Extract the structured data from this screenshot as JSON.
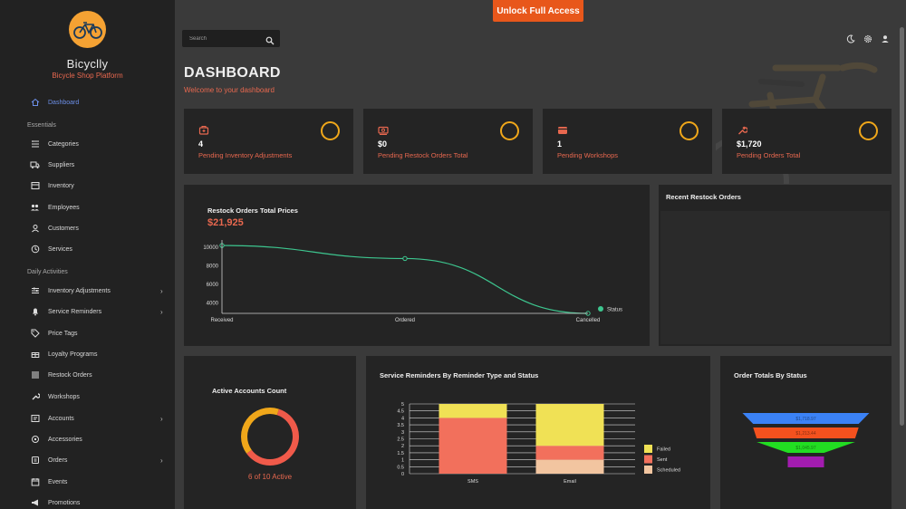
{
  "app": {
    "name": "Bicyclly",
    "subtitle": "Bicycle Shop Platform"
  },
  "unlock_label": "Unlock Full Access",
  "search": {
    "placeholder": "Search"
  },
  "page": {
    "title": "DASHBOARD",
    "subtitle": "Welcome to your dashboard"
  },
  "sidebar": {
    "dashboard": "Dashboard",
    "section_essentials": "Essentials",
    "essentials": [
      "Categories",
      "Suppliers",
      "Inventory",
      "Employees",
      "Customers",
      "Services"
    ],
    "section_daily": "Daily Activities",
    "daily": [
      "Inventory Adjustments",
      "Service Reminders",
      "Price Tags",
      "Loyalty Programs",
      "Restock Orders",
      "Workshops",
      "Accounts",
      "Accessories",
      "Orders",
      "Events",
      "Promotions"
    ]
  },
  "stats": [
    {
      "value": "4",
      "label": "Pending Inventory Adjustments",
      "icon": "adjustment-icon"
    },
    {
      "value": "$0",
      "label": "Pending Restock Orders Total",
      "icon": "money-icon"
    },
    {
      "value": "1",
      "label": "Pending Workshops",
      "icon": "card-icon"
    },
    {
      "value": "$1,720",
      "label": "Pending Orders Total",
      "icon": "wrench-icon"
    }
  ],
  "restock_chart": {
    "title": "Restock Orders Total Prices",
    "total": "$21,925",
    "legend": "Status"
  },
  "recent_restock": {
    "title": "Recent Restock Orders"
  },
  "active_accounts": {
    "title": "Active Accounts Count",
    "caption": "6 of 10 Active"
  },
  "reminders": {
    "title": "Service Reminders By Reminder Type and Status"
  },
  "order_totals": {
    "title": "Order Totals By Status",
    "labels": [
      "$1,718.97",
      "$1,213.44",
      "$1,045.97"
    ]
  },
  "colors": {
    "accent": "#e8684f",
    "orange": "#e8571b",
    "ring": "#f0a71a",
    "line": "#3dc68f"
  },
  "chart_data": [
    {
      "type": "line",
      "title": "Restock Orders Total Prices",
      "categories": [
        "Received",
        "Ordered",
        "Cancelled"
      ],
      "series": [
        {
          "name": "Status",
          "values": [
            10200,
            8800,
            2900
          ]
        }
      ],
      "yticks": [
        "10000",
        "8000",
        "6000",
        "4000"
      ],
      "ylim": [
        2900,
        10400
      ]
    },
    {
      "type": "pie",
      "title": "Active Accounts Count",
      "values": [
        6,
        4
      ],
      "colors": [
        "#f05a4a",
        "#f0a71a"
      ]
    },
    {
      "type": "bar",
      "stacked": true,
      "title": "Service Reminders By Reminder Type and Status",
      "categories": [
        "SMS",
        "Email"
      ],
      "series": [
        {
          "name": "Failed",
          "values": [
            1,
            3
          ],
          "color": "#f0e155"
        },
        {
          "name": "Sent",
          "values": [
            4,
            1
          ],
          "color": "#f2705c"
        },
        {
          "name": "Scheduled",
          "values": [
            0,
            1
          ],
          "color": "#f2c5a0"
        }
      ],
      "yticks": [
        "5",
        "4.5",
        "4",
        "3.5",
        "3",
        "2.5",
        "2",
        "1.5",
        "1",
        "0.5",
        "0"
      ],
      "ylim": [
        0,
        5
      ]
    },
    {
      "type": "bar",
      "subtype": "funnel",
      "title": "Order Totals By Status",
      "values": [
        1718.97,
        1213.44,
        1045.97,
        0
      ],
      "value_labels": [
        "$1,718.97",
        "$1,213.44",
        "$1,045.97",
        ""
      ],
      "colors": [
        "#3b82f6",
        "#f4511e",
        "#22dd22",
        "#a21caf"
      ]
    }
  ]
}
